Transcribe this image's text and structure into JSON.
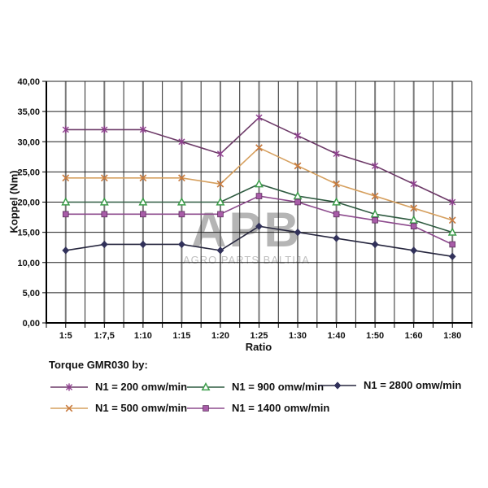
{
  "chart_data": {
    "type": "line",
    "title": "",
    "xlabel": "Ratio",
    "ylabel": "Koppel (Nm)",
    "ylim": [
      0,
      40
    ],
    "ytick_interval": 5,
    "ytick_labels": [
      "40,00",
      "35,00",
      "30,00",
      "25,00",
      "20,00",
      "15,00",
      "10,00",
      "5,00",
      "0,00"
    ],
    "categories": [
      "1:5",
      "1:7,5",
      "1:10",
      "1:15",
      "1:20",
      "1:25",
      "1:30",
      "1:40",
      "1:50",
      "1:60",
      "1:80"
    ],
    "grid": "horizontal major every 5; vertical lines at category centers and boundaries",
    "legend_position": "bottom",
    "series": [
      {
        "name": "N1 = 200 omw/min",
        "marker": "star",
        "line_color": "#6d3a68",
        "marker_color": "#8f3f8f",
        "values": [
          32,
          32,
          32,
          30,
          28,
          34,
          31,
          28,
          26,
          23,
          20
        ]
      },
      {
        "name": "N1 = 500 omw/min",
        "marker": "x-cross",
        "line_color": "#d6a05f",
        "marker_color": "#c8793c",
        "values": [
          24,
          24,
          24,
          24,
          23,
          29,
          26,
          23,
          21,
          19,
          17
        ]
      },
      {
        "name": "N1 = 900 omw/min",
        "marker": "triangle-open",
        "line_color": "#2f5b41",
        "marker_color": "#3d9e4b",
        "values": [
          20,
          20,
          20,
          20,
          20,
          23,
          21,
          20,
          18,
          17,
          15
        ]
      },
      {
        "name": "N1 = 1400 omw/min",
        "marker": "square-filled",
        "line_color": "#8d4b8d",
        "marker_color": "#a85ca8",
        "values": [
          18,
          18,
          18,
          18,
          18,
          21,
          20,
          18,
          17,
          16,
          13
        ]
      },
      {
        "name": "N1 = 2800 omw/min",
        "marker": "diamond-filled",
        "line_color": "#26263e",
        "marker_color": "#31315a",
        "values": [
          12,
          13,
          13,
          13,
          12,
          16,
          15,
          14,
          13,
          12,
          11
        ]
      }
    ]
  },
  "legend": {
    "title": "Torque GMR030 by:"
  },
  "watermark": {
    "logo": "APB",
    "caption": "AGRO PARTS BALTIJA",
    "color": "#b5b5b5"
  }
}
